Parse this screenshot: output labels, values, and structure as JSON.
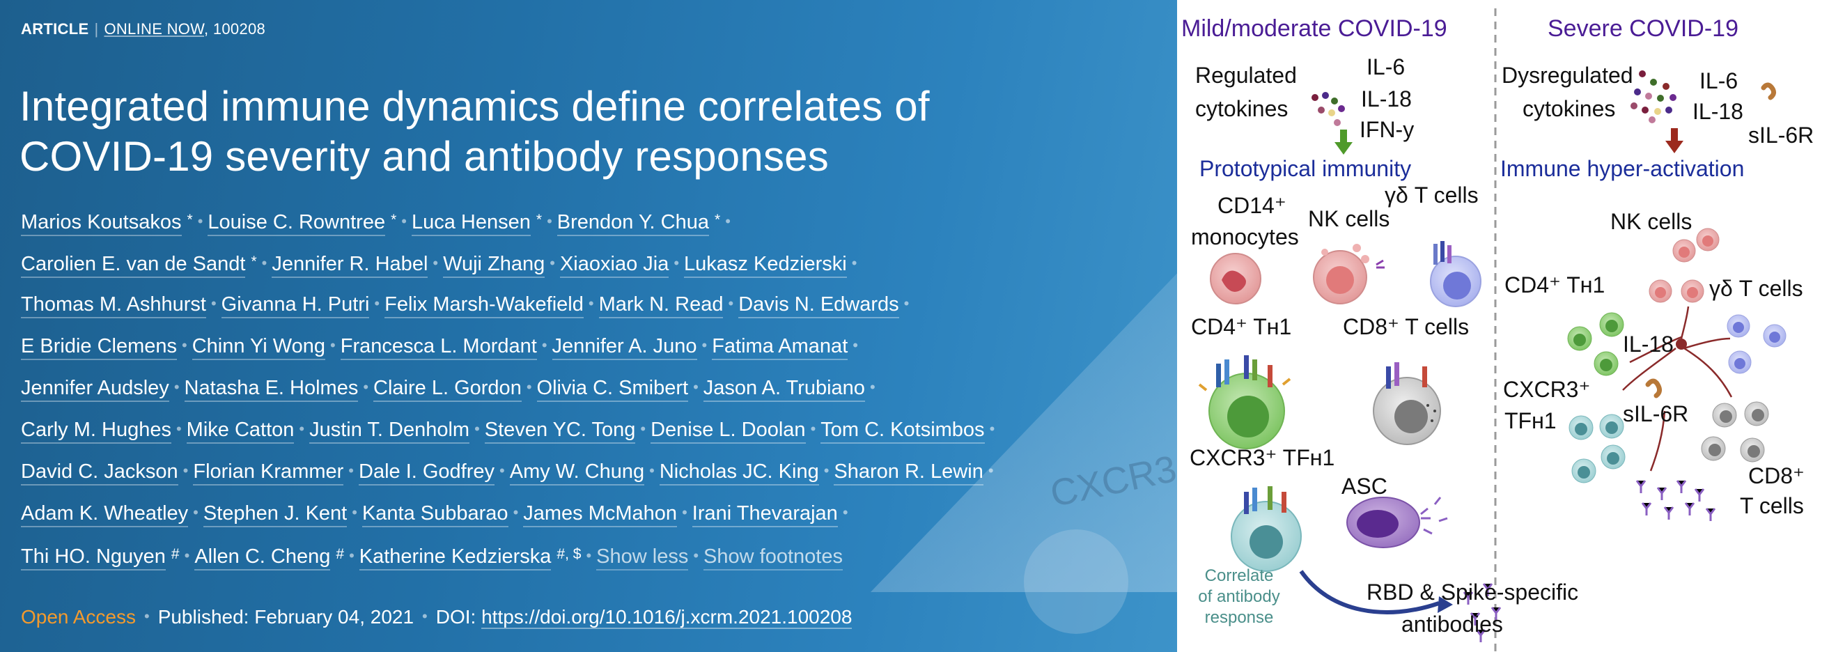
{
  "banner": {
    "article_label": "ARTICLE",
    "online_now": "ONLINE NOW",
    "article_id": ", 100208",
    "title_line1": "Integrated immune dynamics define correlates of",
    "title_line2": "COVID-19 severity and antibody responses",
    "authors": [
      [
        {
          "name": "Marios Koutsakos",
          "mark": "*"
        },
        {
          "name": "Louise C. Rowntree",
          "mark": "*"
        },
        {
          "name": "Luca Hensen",
          "mark": "*"
        },
        {
          "name": "Brendon Y. Chua",
          "mark": "*"
        }
      ],
      [
        {
          "name": "Carolien E. van de Sandt",
          "mark": "*"
        },
        {
          "name": "Jennifer R. Habel"
        },
        {
          "name": "Wuji Zhang"
        },
        {
          "name": "Xiaoxiao Jia"
        },
        {
          "name": "Lukasz Kedzierski"
        }
      ],
      [
        {
          "name": "Thomas M. Ashhurst"
        },
        {
          "name": "Givanna H. Putri"
        },
        {
          "name": "Felix Marsh-Wakefield"
        },
        {
          "name": "Mark N. Read"
        },
        {
          "name": "Davis N. Edwards"
        }
      ],
      [
        {
          "name": "E Bridie Clemens"
        },
        {
          "name": "Chinn Yi Wong"
        },
        {
          "name": "Francesca L. Mordant"
        },
        {
          "name": "Jennifer A. Juno"
        },
        {
          "name": "Fatima Amanat"
        }
      ],
      [
        {
          "name": "Jennifer Audsley"
        },
        {
          "name": "Natasha E. Holmes"
        },
        {
          "name": "Claire L. Gordon"
        },
        {
          "name": "Olivia C. Smibert"
        },
        {
          "name": "Jason A. Trubiano"
        }
      ],
      [
        {
          "name": "Carly M. Hughes"
        },
        {
          "name": "Mike Catton"
        },
        {
          "name": "Justin T. Denholm"
        },
        {
          "name": "Steven YC. Tong"
        },
        {
          "name": "Denise L. Doolan"
        },
        {
          "name": "Tom C. Kotsimbos"
        }
      ],
      [
        {
          "name": "David C. Jackson"
        },
        {
          "name": "Florian Krammer"
        },
        {
          "name": "Dale I. Godfrey"
        },
        {
          "name": "Amy W. Chung"
        },
        {
          "name": "Nicholas JC. King"
        },
        {
          "name": "Sharon R. Lewin"
        }
      ],
      [
        {
          "name": "Adam K. Wheatley"
        },
        {
          "name": "Stephen J. Kent"
        },
        {
          "name": "Kanta Subbarao"
        },
        {
          "name": "James McMahon"
        },
        {
          "name": "Irani Thevarajan"
        }
      ],
      [
        {
          "name": "Thi HO. Nguyen",
          "mark": "#"
        },
        {
          "name": "Allen C. Cheng",
          "mark": "#"
        },
        {
          "name": "Katherine Kedzierska",
          "mark": "#, $"
        }
      ]
    ],
    "show_less": "Show less",
    "show_footnotes": "Show footnotes",
    "open_access": "Open Access",
    "published": "Published: February 04, 2021",
    "doi_label": "DOI: ",
    "doi_link": "https://doi.org/10.1016/j.xcrm.2021.100208",
    "bg_watermark": "CXCR3"
  },
  "abstract": {
    "mild_heading": "Mild/moderate COVID-19",
    "severe_heading": "Severe COVID-19",
    "regulated_line1": "Regulated",
    "regulated_line2": "cytokines",
    "mild_il6": "IL-6",
    "mild_il18": "IL-18",
    "mild_ifn": "IFN-y",
    "prototypical": "Prototypical immunity",
    "dysregulated_line1": "Dysregulated",
    "dysregulated_line2": "cytokines",
    "severe_il6": "IL-6",
    "severe_il18": "IL-18",
    "severe_sil6r": "sIL-6R",
    "hyper_activation": "Immune hyper-activation",
    "cd14": "CD14⁺",
    "monocytes": "monocytes",
    "nk_cells_mild": "NK cells",
    "gd_t_cells_mild": "γδ T cells",
    "cd4_th1_mild": "CD4⁺ Tʜ1",
    "cd8_t_cells_mild": "CD8⁺ T cells",
    "cxcr3_tfh1_mild": "CXCR3⁺ TFʜ1",
    "asc": "ASC",
    "correlate_line1": "Correlate",
    "correlate_line2": "of antibody",
    "correlate_line3": "response",
    "rbd_line1": "RBD & Spike-specific",
    "rbd_line2": "antibodies",
    "nk_cells_severe": "NK cells",
    "cd4_th1_severe": "CD4⁺ Tʜ1",
    "gd_t_cells_severe": "γδ T cells",
    "il18_center": "IL-18",
    "cxcr3_severe": "CXCR3⁺",
    "tfh1_severe": "TFʜ1",
    "sil6r_center": "sIL-6R",
    "cd8_severe_line1": "CD8⁺",
    "cd8_severe_line2": "T cells",
    "colors": {
      "heading_purple": "#4a1c95",
      "subheading_blue": "#1b2d9a",
      "arrow_green": "#4f9a2a",
      "arrow_red": "#9c2a1e",
      "arrow_navy": "#2a3f8f",
      "correlate_teal": "#4a8f8a"
    }
  }
}
